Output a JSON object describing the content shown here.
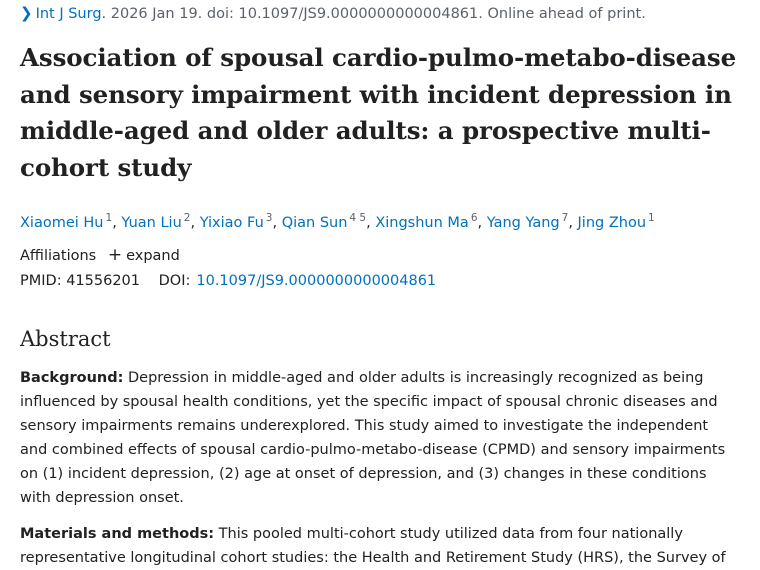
{
  "citation": {
    "journal": "Int J Surg.",
    "details": "2026 Jan 19. doi: 10.1097/JS9.0000000000004861. Online ahead of print."
  },
  "title": "Association of spousal cardio-pulmo-metabo-disease and sensory impairment with incident depression in middle-aged and older adults: a prospective multi-cohort study",
  "authors": [
    {
      "name": "Xiaomei Hu",
      "aff": "1"
    },
    {
      "name": "Yuan Liu",
      "aff": "2"
    },
    {
      "name": "Yixiao Fu",
      "aff": "3"
    },
    {
      "name": "Qian Sun",
      "aff": "4 5"
    },
    {
      "name": "Xingshun Ma",
      "aff": "6"
    },
    {
      "name": "Yang Yang",
      "aff": "7"
    },
    {
      "name": "Jing Zhou",
      "aff": "1"
    }
  ],
  "affiliations": {
    "label": "Affiliations",
    "expand_label": "expand"
  },
  "identifiers": {
    "pmid_label": "PMID:",
    "pmid": "41556201",
    "doi_label": "DOI:",
    "doi": "10.1097/JS9.0000000000004861"
  },
  "abstract": {
    "heading": "Abstract",
    "background_label": "Background:",
    "background_text": "Depression in middle-aged and older adults is increasingly recognized as being influenced by spousal health conditions, yet the specific impact of spousal chronic diseases and sensory impairments remains underexplored. This study aimed to investigate the independent and combined effects of spousal cardio-pulmo-metabo-disease (CPMD) and sensory impairments on (1) incident depression, (2) age at onset of depression, and (3) changes in these conditions with depression onset.",
    "methods_label": "Materials and methods:",
    "methods_text": "This pooled multi-cohort study utilized data from four nationally representative longitudinal cohort studies: the Health and Retirement Study (HRS), the Survey of"
  }
}
